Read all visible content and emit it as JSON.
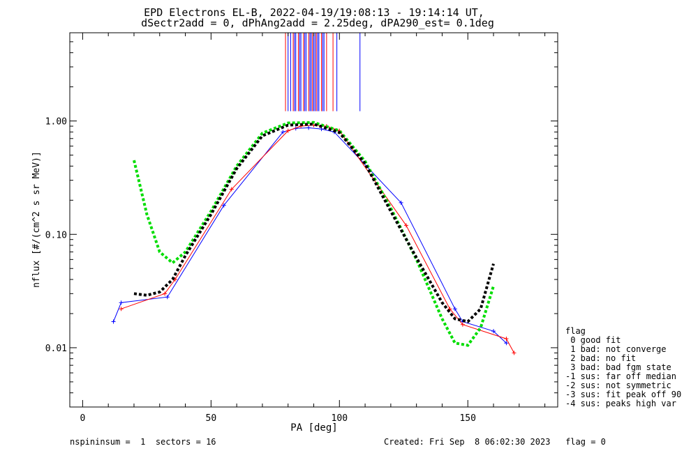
{
  "chart_data": {
    "type": "line",
    "title": "EPD Electrons EL-B, 2022-04-19/19:08:13 - 19:14:14 UT,",
    "subtitle": "dSectr2add = 0, dPhAng2add = 2.25deg, dPA290_est=   0.1deg",
    "xlabel": "PA [deg]",
    "ylabel": "nflux [#/(cm^2 s sr MeV)]",
    "xlim": [
      -5,
      185
    ],
    "ylim": [
      0.003,
      6.0
    ],
    "yscale": "log",
    "x_ticks": [
      0,
      50,
      100,
      150
    ],
    "x_tick_labels": [
      "0",
      "50",
      "100",
      "150"
    ],
    "y_ticks": [
      0.01,
      0.1,
      1.0
    ],
    "y_tick_labels": [
      "0.01",
      "0.10",
      "1.00"
    ],
    "series": [
      {
        "color": "#0000ff",
        "style": "thin-line-plus",
        "x": [
          12,
          15,
          33,
          55,
          78,
          83,
          88,
          93,
          98,
          124,
          145,
          148,
          160,
          165
        ],
        "y": [
          0.017,
          0.025,
          0.028,
          0.18,
          0.8,
          0.86,
          0.87,
          0.85,
          0.8,
          0.19,
          0.022,
          0.017,
          0.014,
          0.011
        ]
      },
      {
        "color": "#ff0000",
        "style": "thin-line-plus",
        "x": [
          15,
          32,
          36,
          58,
          80,
          85,
          90,
          95,
          100,
          126,
          143,
          148,
          165,
          168
        ],
        "y": [
          0.022,
          0.03,
          0.04,
          0.25,
          0.82,
          0.9,
          0.92,
          0.9,
          0.82,
          0.12,
          0.022,
          0.016,
          0.012,
          0.009
        ]
      },
      {
        "color": "#00dd00",
        "style": "dashed-fit",
        "x": [
          20,
          25,
          30,
          35,
          40,
          50,
          60,
          70,
          80,
          90,
          100,
          110,
          120,
          130,
          140,
          145,
          150,
          155,
          160
        ],
        "y": [
          0.45,
          0.15,
          0.07,
          0.056,
          0.07,
          0.16,
          0.4,
          0.78,
          0.96,
          0.97,
          0.82,
          0.44,
          0.17,
          0.06,
          0.018,
          0.011,
          0.0105,
          0.015,
          0.035
        ]
      },
      {
        "color": "#000000",
        "style": "dashed-fit",
        "x": [
          20,
          25,
          30,
          35,
          40,
          50,
          60,
          70,
          80,
          90,
          100,
          110,
          120,
          130,
          140,
          145,
          150,
          155,
          160
        ],
        "y": [
          0.03,
          0.029,
          0.031,
          0.04,
          0.065,
          0.15,
          0.38,
          0.74,
          0.92,
          0.94,
          0.79,
          0.42,
          0.16,
          0.062,
          0.025,
          0.018,
          0.017,
          0.022,
          0.055
        ]
      }
    ],
    "peak_markers": {
      "y_from": 1.22,
      "y_to": 6.0,
      "red_x": [
        79,
        82,
        84,
        86,
        88,
        89.5,
        91,
        93,
        95,
        97.5
      ],
      "blue_x": [
        80,
        81,
        82.5,
        83,
        84.5,
        85,
        86.5,
        87,
        88.5,
        89,
        90,
        90.5,
        91.5,
        92,
        93.5,
        94,
        99,
        108
      ]
    }
  },
  "legend": {
    "title": "flag",
    "items": [
      " 0 good fit",
      " 1 bad: not converge",
      " 2 bad: no fit",
      " 3 bad: bad fgm state",
      "-1 sus: far off median",
      "-2 sus: not symmetric",
      "-3 sus: fit peak off 90",
      "-4 sus: peaks high var"
    ]
  },
  "footer": {
    "left": "nspininsum =  1  sectors = 16",
    "right": "Created: Fri Sep  8 06:02:30 2023   flag = 0"
  }
}
